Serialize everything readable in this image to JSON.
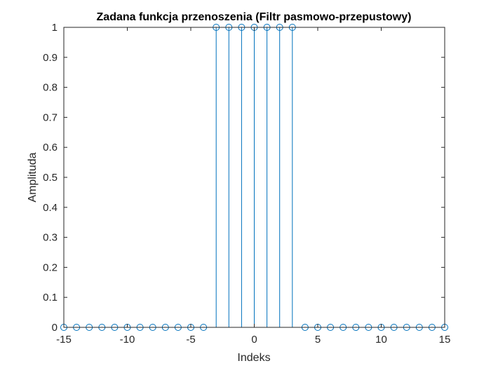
{
  "chart_data": {
    "type": "stem",
    "title": "Zadana funkcja przenoszenia (Filtr pasmowo-przepustowy)",
    "xlabel": "Indeks",
    "ylabel": "Amplituda",
    "xlim": [
      -15,
      15
    ],
    "ylim": [
      0,
      1
    ],
    "x_ticks": [
      -15,
      -10,
      -5,
      0,
      5,
      10,
      15
    ],
    "y_ticks": [
      0,
      0.1,
      0.2,
      0.3,
      0.4,
      0.5,
      0.6,
      0.7,
      0.8,
      0.9,
      1
    ],
    "grid": false,
    "marker": "circle",
    "series": [
      {
        "color": "#0072bd",
        "x": [
          -15,
          -14,
          -13,
          -12,
          -11,
          -10,
          -9,
          -8,
          -7,
          -6,
          -5,
          -4,
          -3,
          -2,
          -1,
          0,
          1,
          2,
          3,
          4,
          5,
          6,
          7,
          8,
          9,
          10,
          11,
          12,
          13,
          14,
          15
        ],
        "y": [
          0,
          0,
          0,
          0,
          0,
          0,
          0,
          0,
          0,
          0,
          0,
          0,
          1,
          1,
          1,
          1,
          1,
          1,
          1,
          0,
          0,
          0,
          0,
          0,
          0,
          0,
          0,
          0,
          0,
          0,
          0
        ]
      }
    ]
  }
}
